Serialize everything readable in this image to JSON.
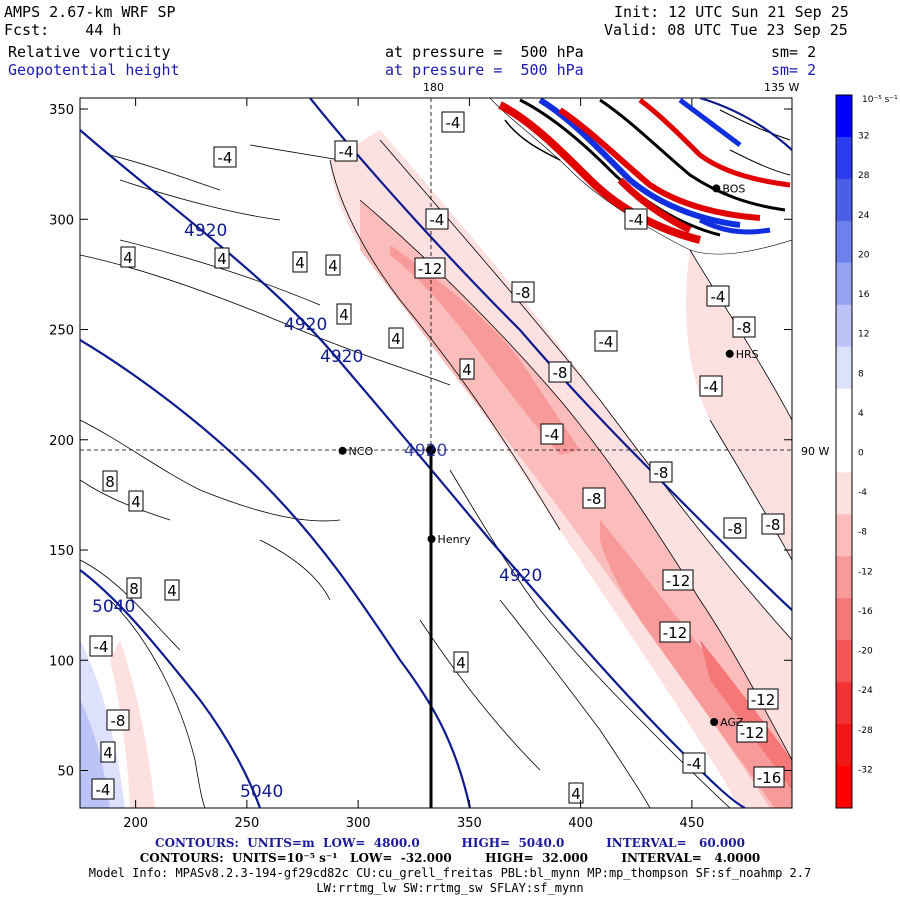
{
  "header": {
    "model_title": "AMPS 2.67-km WRF SP",
    "forecast": "Fcst:    44 h",
    "init": "Init: 12 UTC Sun 21 Sep 25",
    "valid": "Valid: 08 UTC Tue 23 Sep 25",
    "field1": "Relative vorticity",
    "field2": "Geopotential height",
    "pressure1": "at pressure =  500 hPa",
    "pressure2": "at pressure =  500 hPa",
    "sm1": "sm= 2",
    "sm2": "sm= 2"
  },
  "map_labels": {
    "lon_180": "180",
    "lon_135w": "135 W",
    "lon_90w": "90 W"
  },
  "stations": [
    {
      "name": "NCO",
      "x": 293,
      "y": 195
    },
    {
      "name": "Henry",
      "x": 333,
      "y": 155
    },
    {
      "name": "HRS",
      "x": 467,
      "y": 239
    },
    {
      "name": "BOS",
      "x": 461,
      "y": 314
    },
    {
      "name": "AGZ",
      "x": 460,
      "y": 72
    }
  ],
  "chart_data": {
    "type": "heatmap",
    "xlim": [
      175,
      495
    ],
    "ylim": [
      33,
      355
    ],
    "xticks": [
      "200",
      "250",
      "300",
      "350",
      "400",
      "450"
    ],
    "yticks": [
      "50",
      "100",
      "150",
      "200",
      "250",
      "300",
      "350"
    ],
    "colorbar": {
      "unit_label": "10⁻⁵ s⁻¹",
      "ticks": [
        "32",
        "28",
        "24",
        "20",
        "16",
        "12",
        "8",
        "4",
        "0",
        "-4",
        "-8",
        "-12",
        "-16",
        "-20",
        "-24",
        "-28",
        "-32"
      ],
      "colors": [
        "#0000ff",
        "#2a3df0",
        "#4a5ee8",
        "#6e80ee",
        "#96a2f2",
        "#bcc4f7",
        "#dde1fb",
        "#ffffff",
        "#ffffff",
        "#fde0e0",
        "#fbbcbc",
        "#f89a9a",
        "#f67777",
        "#f45555",
        "#f23333",
        "#f21515",
        "#ff0000"
      ]
    },
    "height_contours": [
      {
        "label": "4920"
      },
      {
        "label": "4920"
      },
      {
        "label": "4920"
      },
      {
        "label": "4920"
      },
      {
        "label": "5040"
      },
      {
        "label": "5040"
      }
    ],
    "vorticity_labels": [
      "-4",
      "-4",
      "-4",
      "-4",
      "-12",
      "-8",
      "-8",
      "-4",
      "-4",
      "-4",
      "-8",
      "-4",
      "-4",
      "-8",
      "-8",
      "-8",
      "-8",
      "-12",
      "-12",
      "-12",
      "-12",
      "-16",
      "-4",
      "4",
      "4",
      "4",
      "4",
      "4",
      "4",
      "4",
      "4",
      "4",
      "8",
      "8",
      "-4",
      "-4",
      "-8",
      "4",
      "4",
      "4"
    ]
  },
  "footer": {
    "line1": "CONTOURS:  UNITS=m  LOW=  4800.0          HIGH=  5040.0          INTERVAL=   60.000",
    "line2": "CONTOURS:  UNITS=10⁻⁵ s⁻¹   LOW=  -32.000        HIGH=  32.000        INTERVAL=   4.0000",
    "line3": "Model Info: MPASv8.2.3-194-gf29cd82c CU:cu_grell_freitas PBL:bl_mynn MP:mp_thompson SF:sf_noahmp 2.7",
    "line4": "LW:rrtmg_lw SW:rrtmg_sw SFLAY:sf_mynn"
  }
}
